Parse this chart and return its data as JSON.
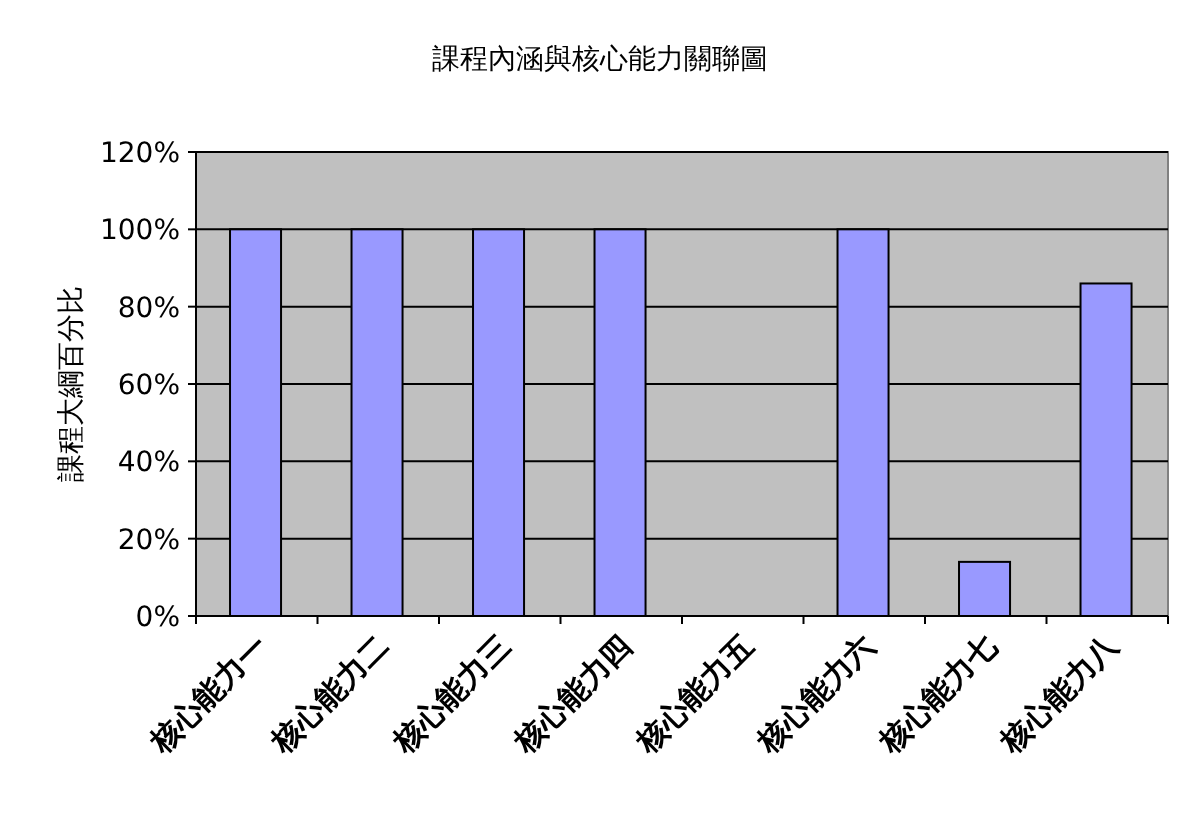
{
  "chart_data": {
    "type": "bar",
    "title": "課程內涵與核心能力關聯圖",
    "ylabel": "課程大綱百分比",
    "categories": [
      "核心能力一",
      "核心能力二",
      "核心能力三",
      "核心能力四",
      "核心能力五",
      "核心能力六",
      "核心能力七",
      "核心能力八"
    ],
    "values": [
      100,
      100,
      100,
      100,
      0,
      100,
      14,
      86
    ],
    "color": "#9999ff",
    "ylim": [
      0,
      120
    ],
    "yticks": [
      {
        "value": 0,
        "label": "0%"
      },
      {
        "value": 20,
        "label": "20%"
      },
      {
        "value": 40,
        "label": "40%"
      },
      {
        "value": 60,
        "label": "60%"
      },
      {
        "value": 80,
        "label": "80%"
      },
      {
        "value": 100,
        "label": "100%"
      },
      {
        "value": 120,
        "label": "120%"
      }
    ],
    "grid": "y"
  }
}
